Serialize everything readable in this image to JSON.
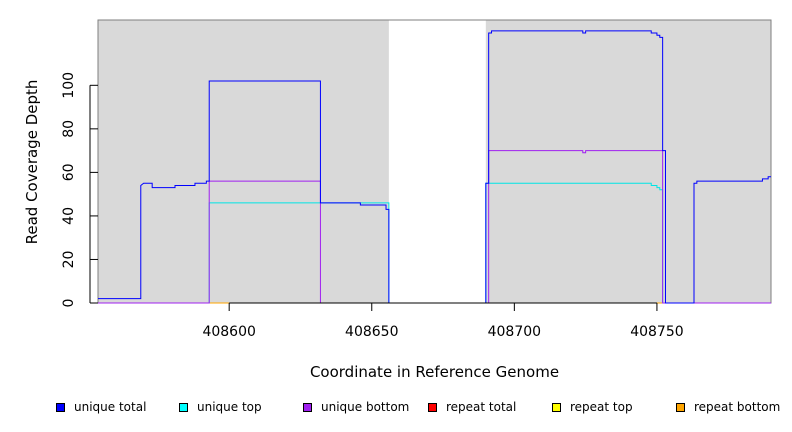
{
  "chart_data": {
    "type": "line",
    "title": "",
    "xlabel": "Coordinate in Reference Genome",
    "ylabel": "Read Coverage Depth",
    "xlim": [
      408554,
      408790
    ],
    "ylim": [
      0,
      130
    ],
    "x_ticks": [
      408600,
      408650,
      408700,
      408750
    ],
    "y_ticks": [
      0,
      20,
      40,
      60,
      80,
      100
    ],
    "grid": false,
    "shaded_regions": [
      [
        408554,
        408656
      ],
      [
        408690,
        408790
      ]
    ],
    "shade_color": "#d9d9d9",
    "legend_position": "bottom",
    "series": [
      {
        "name": "unique total",
        "color": "#0000ff",
        "points": [
          [
            408554,
            2
          ],
          [
            408569,
            2
          ],
          [
            408569,
            54
          ],
          [
            408570,
            55
          ],
          [
            408573,
            55
          ],
          [
            408573,
            53
          ],
          [
            408581,
            53
          ],
          [
            408581,
            54
          ],
          [
            408588,
            54
          ],
          [
            408588,
            55
          ],
          [
            408592,
            55
          ],
          [
            408592,
            56
          ],
          [
            408593,
            56
          ],
          [
            408593,
            102
          ],
          [
            408632,
            102
          ],
          [
            408632,
            46
          ],
          [
            408646,
            46
          ],
          [
            408646,
            45
          ],
          [
            408655,
            45
          ],
          [
            408655,
            43
          ],
          [
            408656,
            43
          ],
          [
            408656,
            0
          ],
          [
            408690,
            0
          ],
          [
            408690,
            55
          ],
          [
            408691,
            55
          ],
          [
            408691,
            124
          ],
          [
            408692,
            124
          ],
          [
            408692,
            125
          ],
          [
            408724,
            125
          ],
          [
            408724,
            124
          ],
          [
            408725,
            124
          ],
          [
            408725,
            125
          ],
          [
            408748,
            125
          ],
          [
            408748,
            124
          ],
          [
            408750,
            124
          ],
          [
            408750,
            123
          ],
          [
            408751,
            123
          ],
          [
            408751,
            122
          ],
          [
            408752,
            122
          ],
          [
            408752,
            70
          ],
          [
            408753,
            70
          ],
          [
            408753,
            0
          ],
          [
            408763,
            0
          ],
          [
            408763,
            55
          ],
          [
            408764,
            55
          ],
          [
            408764,
            56
          ],
          [
            408787,
            56
          ],
          [
            408787,
            57
          ],
          [
            408789,
            57
          ],
          [
            408789,
            58
          ],
          [
            408790,
            58
          ]
        ]
      },
      {
        "name": "unique top",
        "color": "#00e5e5",
        "points": [
          [
            408554,
            0
          ],
          [
            408593,
            0
          ],
          [
            408593,
            46
          ],
          [
            408632,
            46
          ],
          [
            408632,
            46
          ],
          [
            408656,
            46
          ],
          [
            408656,
            0
          ],
          [
            408690,
            0
          ],
          [
            408690,
            55
          ],
          [
            408748,
            55
          ],
          [
            408748,
            54
          ],
          [
            408750,
            54
          ],
          [
            408750,
            53
          ],
          [
            408751,
            53
          ],
          [
            408751,
            52
          ],
          [
            408752,
            52
          ],
          [
            408752,
            0
          ],
          [
            408790,
            0
          ]
        ]
      },
      {
        "name": "unique bottom",
        "color": "#a020f0",
        "points": [
          [
            408554,
            0
          ],
          [
            408593,
            0
          ],
          [
            408593,
            56
          ],
          [
            408632,
            56
          ],
          [
            408632,
            0
          ],
          [
            408690,
            0
          ],
          [
            408691,
            0
          ],
          [
            408691,
            70
          ],
          [
            408724,
            70
          ],
          [
            408724,
            69
          ],
          [
            408725,
            69
          ],
          [
            408725,
            70
          ],
          [
            408752,
            70
          ],
          [
            408752,
            0
          ],
          [
            408790,
            0
          ]
        ]
      },
      {
        "name": "repeat total",
        "color": "#ff0000",
        "points": [
          [
            408554,
            0
          ],
          [
            408790,
            0
          ]
        ]
      },
      {
        "name": "repeat top",
        "color": "#ffff00",
        "points": [
          [
            408554,
            0
          ],
          [
            408790,
            0
          ]
        ]
      },
      {
        "name": "repeat bottom",
        "color": "#ffa500",
        "points": [
          [
            408554,
            0
          ],
          [
            408790,
            0
          ]
        ]
      }
    ]
  },
  "legend": [
    {
      "label": "unique total",
      "color": "#0000ff"
    },
    {
      "label": "unique top",
      "color": "#00ffff"
    },
    {
      "label": "unique bottom",
      "color": "#a020f0"
    },
    {
      "label": "repeat total",
      "color": "#ff0000"
    },
    {
      "label": "repeat top",
      "color": "#ffff00"
    },
    {
      "label": "repeat bottom",
      "color": "#ffa500"
    }
  ]
}
